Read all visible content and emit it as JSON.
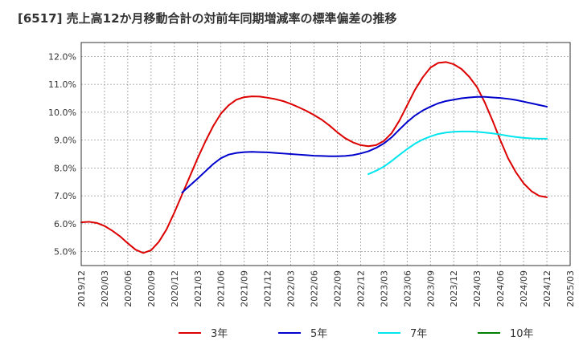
{
  "chart_data": {
    "type": "line",
    "title": "[6517]  売上高12か月移動合計の対前年同期増減率の標準偏差の推移",
    "xlabel": "",
    "ylabel": "",
    "x_ticks": [
      "2019/12",
      "2020/03",
      "2020/06",
      "2020/09",
      "2020/12",
      "2021/03",
      "2021/06",
      "2021/09",
      "2021/12",
      "2022/03",
      "2022/06",
      "2022/09",
      "2022/12",
      "2023/03",
      "2023/06",
      "2023/09",
      "2023/12",
      "2024/03",
      "2024/06",
      "2024/09",
      "2024/12",
      "2025/03"
    ],
    "y_ticks": [
      "5.0%",
      "6.0%",
      "7.0%",
      "8.0%",
      "9.0%",
      "10.0%",
      "11.0%",
      "12.0%"
    ],
    "y_tick_values": [
      5,
      6,
      7,
      8,
      9,
      10,
      11,
      12
    ],
    "ylim": [
      4.5,
      12.5
    ],
    "grid": true,
    "legend_position": "bottom",
    "series": [
      {
        "name": "3年",
        "color": "#dd0000",
        "points": [
          [
            "2019/12",
            6.05
          ],
          [
            "2020/01",
            6.07
          ],
          [
            "2020/02",
            6.03
          ],
          [
            "2020/03",
            5.92
          ],
          [
            "2020/04",
            5.75
          ],
          [
            "2020/05",
            5.55
          ],
          [
            "2020/06",
            5.3
          ],
          [
            "2020/07",
            5.07
          ],
          [
            "2020/08",
            4.95
          ],
          [
            "2020/09",
            5.05
          ],
          [
            "2020/10",
            5.35
          ],
          [
            "2020/11",
            5.8
          ],
          [
            "2020/12",
            6.4
          ],
          [
            "2021/01",
            7.05
          ],
          [
            "2021/02",
            7.7
          ],
          [
            "2021/03",
            8.35
          ],
          [
            "2021/04",
            8.95
          ],
          [
            "2021/05",
            9.5
          ],
          [
            "2021/06",
            9.95
          ],
          [
            "2021/07",
            10.25
          ],
          [
            "2021/08",
            10.45
          ],
          [
            "2021/09",
            10.54
          ],
          [
            "2021/10",
            10.57
          ],
          [
            "2021/11",
            10.56
          ],
          [
            "2021/12",
            10.52
          ],
          [
            "2022/01",
            10.47
          ],
          [
            "2022/02",
            10.4
          ],
          [
            "2022/03",
            10.3
          ],
          [
            "2022/04",
            10.18
          ],
          [
            "2022/05",
            10.05
          ],
          [
            "2022/06",
            9.9
          ],
          [
            "2022/07",
            9.73
          ],
          [
            "2022/08",
            9.52
          ],
          [
            "2022/09",
            9.28
          ],
          [
            "2022/10",
            9.07
          ],
          [
            "2022/11",
            8.92
          ],
          [
            "2022/12",
            8.82
          ],
          [
            "2023/01",
            8.78
          ],
          [
            "2023/02",
            8.82
          ],
          [
            "2023/03",
            8.97
          ],
          [
            "2023/04",
            9.25
          ],
          [
            "2023/05",
            9.7
          ],
          [
            "2023/06",
            10.25
          ],
          [
            "2023/07",
            10.8
          ],
          [
            "2023/08",
            11.25
          ],
          [
            "2023/09",
            11.6
          ],
          [
            "2023/10",
            11.77
          ],
          [
            "2023/11",
            11.8
          ],
          [
            "2023/12",
            11.72
          ],
          [
            "2024/01",
            11.55
          ],
          [
            "2024/02",
            11.27
          ],
          [
            "2024/03",
            10.9
          ],
          [
            "2024/04",
            10.35
          ],
          [
            "2024/05",
            9.7
          ],
          [
            "2024/06",
            9.0
          ],
          [
            "2024/07",
            8.35
          ],
          [
            "2024/08",
            7.85
          ],
          [
            "2024/09",
            7.45
          ],
          [
            "2024/10",
            7.17
          ],
          [
            "2024/11",
            7.0
          ],
          [
            "2024/12",
            6.95
          ]
        ]
      },
      {
        "name": "5年",
        "color": "#0000cc",
        "points": [
          [
            "2021/01",
            7.12
          ],
          [
            "2021/02",
            7.37
          ],
          [
            "2021/03",
            7.62
          ],
          [
            "2021/04",
            7.88
          ],
          [
            "2021/05",
            8.14
          ],
          [
            "2021/06",
            8.35
          ],
          [
            "2021/07",
            8.48
          ],
          [
            "2021/08",
            8.54
          ],
          [
            "2021/09",
            8.57
          ],
          [
            "2021/10",
            8.58
          ],
          [
            "2021/11",
            8.57
          ],
          [
            "2021/12",
            8.56
          ],
          [
            "2022/01",
            8.54
          ],
          [
            "2022/02",
            8.52
          ],
          [
            "2022/03",
            8.5
          ],
          [
            "2022/04",
            8.48
          ],
          [
            "2022/05",
            8.46
          ],
          [
            "2022/06",
            8.44
          ],
          [
            "2022/07",
            8.43
          ],
          [
            "2022/08",
            8.42
          ],
          [
            "2022/09",
            8.42
          ],
          [
            "2022/10",
            8.43
          ],
          [
            "2022/11",
            8.46
          ],
          [
            "2022/12",
            8.52
          ],
          [
            "2023/01",
            8.6
          ],
          [
            "2023/02",
            8.72
          ],
          [
            "2023/03",
            8.88
          ],
          [
            "2023/04",
            9.1
          ],
          [
            "2023/05",
            9.38
          ],
          [
            "2023/06",
            9.65
          ],
          [
            "2023/07",
            9.88
          ],
          [
            "2023/08",
            10.06
          ],
          [
            "2023/09",
            10.2
          ],
          [
            "2023/10",
            10.32
          ],
          [
            "2023/11",
            10.4
          ],
          [
            "2023/12",
            10.45
          ],
          [
            "2024/01",
            10.5
          ],
          [
            "2024/02",
            10.53
          ],
          [
            "2024/03",
            10.55
          ],
          [
            "2024/04",
            10.55
          ],
          [
            "2024/05",
            10.53
          ],
          [
            "2024/06",
            10.51
          ],
          [
            "2024/07",
            10.48
          ],
          [
            "2024/08",
            10.44
          ],
          [
            "2024/09",
            10.38
          ],
          [
            "2024/10",
            10.32
          ],
          [
            "2024/11",
            10.26
          ],
          [
            "2024/12",
            10.2
          ]
        ]
      },
      {
        "name": "7年",
        "color": "#00e5ee",
        "points": [
          [
            "2023/01",
            7.78
          ],
          [
            "2023/02",
            7.9
          ],
          [
            "2023/03",
            8.05
          ],
          [
            "2023/04",
            8.25
          ],
          [
            "2023/05",
            8.47
          ],
          [
            "2023/06",
            8.68
          ],
          [
            "2023/07",
            8.87
          ],
          [
            "2023/08",
            9.02
          ],
          [
            "2023/09",
            9.13
          ],
          [
            "2023/10",
            9.22
          ],
          [
            "2023/11",
            9.27
          ],
          [
            "2023/12",
            9.3
          ],
          [
            "2024/01",
            9.31
          ],
          [
            "2024/02",
            9.31
          ],
          [
            "2024/03",
            9.3
          ],
          [
            "2024/04",
            9.27
          ],
          [
            "2024/05",
            9.24
          ],
          [
            "2024/06",
            9.2
          ],
          [
            "2024/07",
            9.15
          ],
          [
            "2024/08",
            9.11
          ],
          [
            "2024/09",
            9.08
          ],
          [
            "2024/10",
            9.06
          ],
          [
            "2024/11",
            9.05
          ],
          [
            "2024/12",
            9.05
          ]
        ]
      },
      {
        "name": "10年",
        "color": "#008000",
        "points": []
      }
    ]
  }
}
